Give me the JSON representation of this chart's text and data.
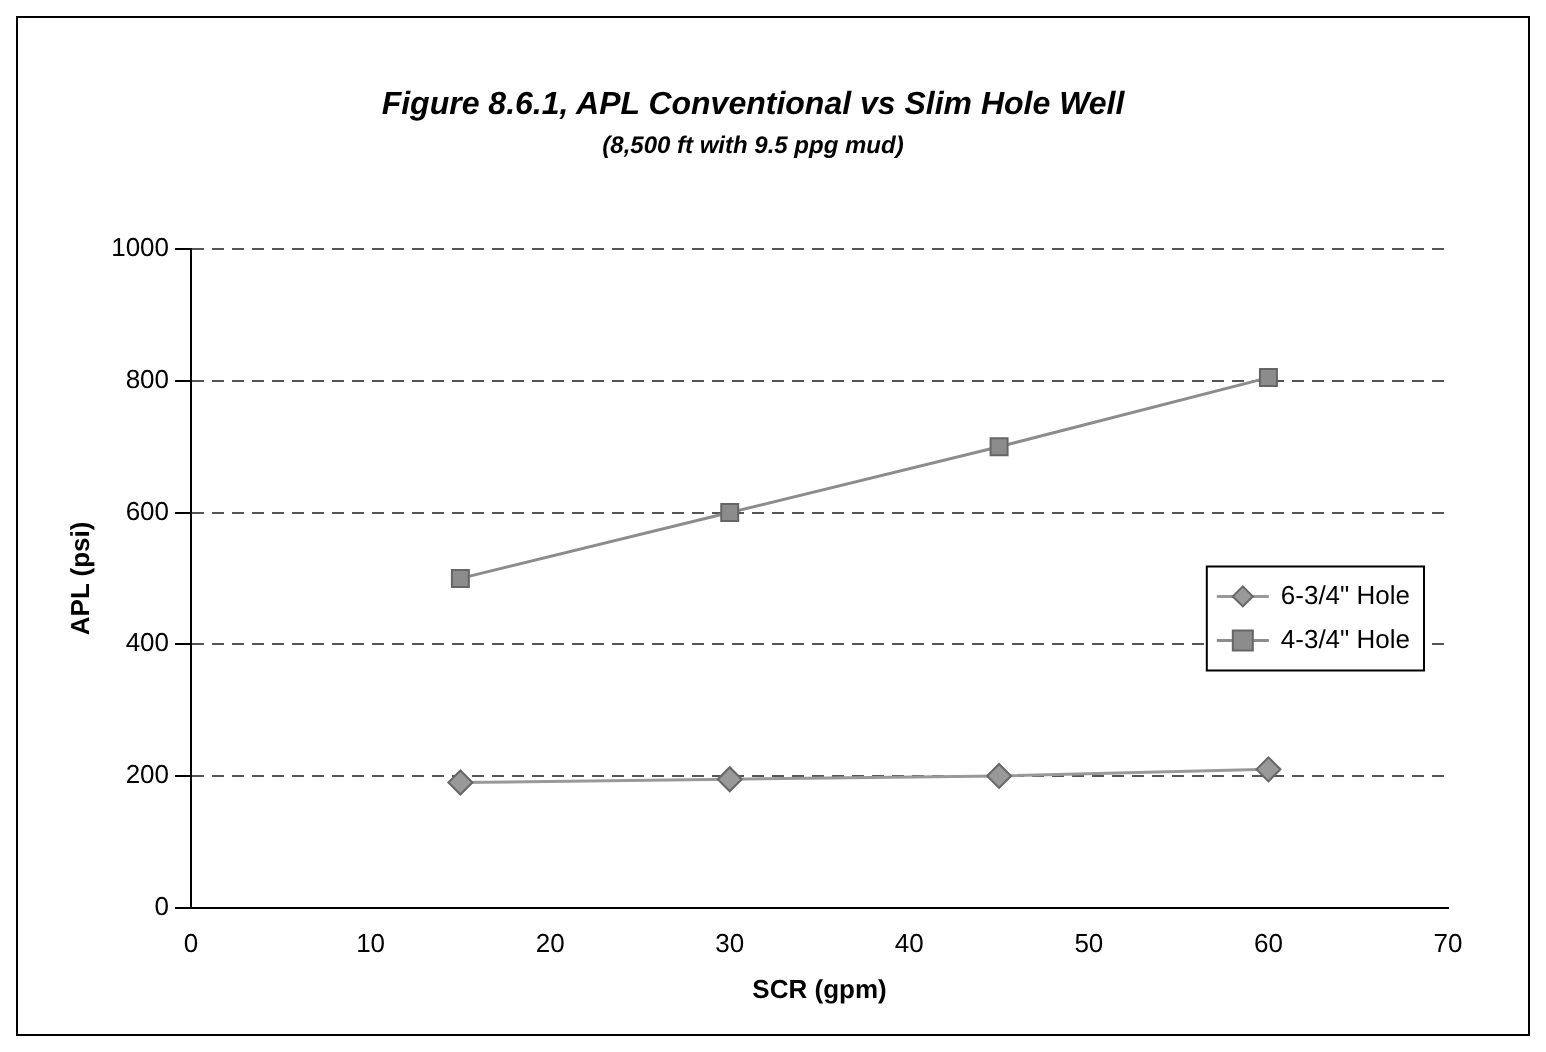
{
  "chart_data": {
    "type": "line",
    "title": "Figure 8.6.1, APL Conventional vs Slim Hole Well",
    "subtitle": "(8,500 ft with 9.5 ppg mud)",
    "xlabel": "SCR (gpm)",
    "ylabel": "APL (psi)",
    "x": [
      15,
      30,
      45,
      60
    ],
    "series": [
      {
        "name": "6-3/4\" Hole",
        "color": "#999999",
        "marker": "diamond",
        "values": [
          190,
          195,
          200,
          210
        ]
      },
      {
        "name": "4-3/4\" Hole",
        "color": "#8c8c8c",
        "marker": "square",
        "values": [
          500,
          600,
          700,
          805
        ]
      }
    ],
    "xlim": [
      0,
      70
    ],
    "xticks": [
      0,
      10,
      20,
      30,
      40,
      50,
      60,
      70
    ],
    "ylim": [
      0,
      1000
    ],
    "yticks": [
      0,
      200,
      400,
      600,
      800,
      1000
    ],
    "grid": "y",
    "line_style": "solid",
    "legend": "right"
  }
}
